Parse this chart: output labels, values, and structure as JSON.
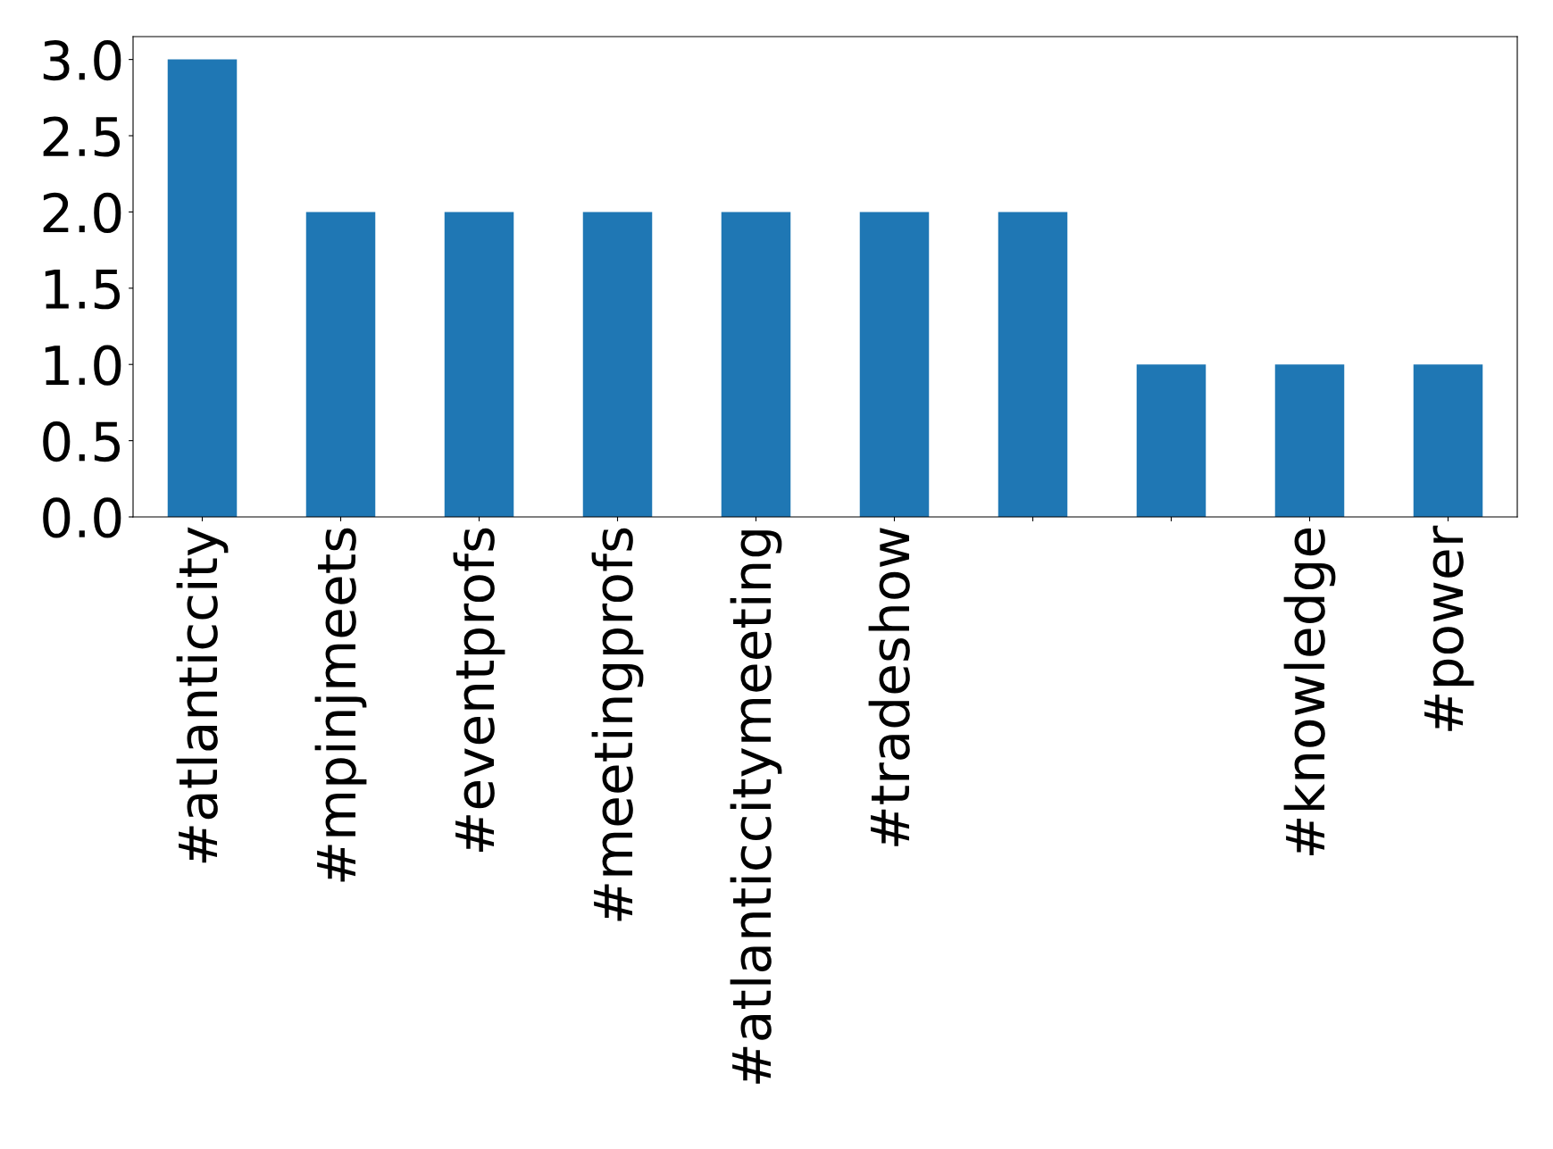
{
  "chart_data": {
    "type": "bar",
    "categories": [
      "#atlanticcity",
      "#mpinjmeets",
      "#eventprofs",
      "#meetingprofs",
      "#atlanticcitymeeting",
      "#tradeshow",
      null,
      null,
      "#knowledge",
      "#power"
    ],
    "values": [
      3,
      2,
      2,
      2,
      2,
      2,
      2,
      1,
      1,
      1
    ],
    "color": "#1f77b4",
    "ylim": [
      0,
      3.15
    ],
    "yticks": [
      {
        "value": 0,
        "label": "0.0"
      },
      0.5,
      {
        "value": 1,
        "label": "1.0"
      },
      1.5,
      {
        "value": 2,
        "label": "2.0"
      },
      2.5,
      {
        "value": 3,
        "label": "3.0"
      }
    ],
    "grid": false,
    "legend": false
  }
}
